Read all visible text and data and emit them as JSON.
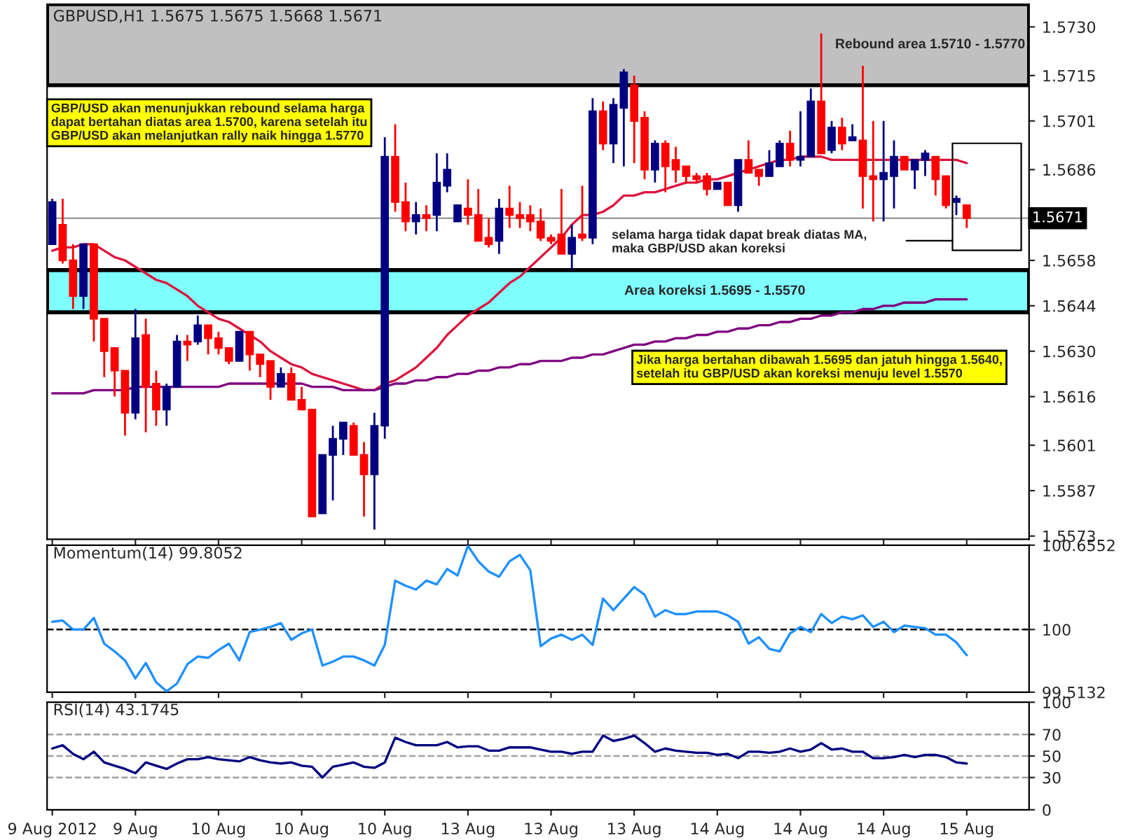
{
  "chart_data": [
    {
      "type": "candlestick",
      "title": "GBPUSD,H1 1.5675 1.5675 1.5668 1.5671",
      "categories": [
        null,
        null,
        null,
        null,
        null,
        null,
        null,
        null,
        null,
        null,
        null,
        null,
        null,
        null,
        null,
        null,
        null,
        null,
        null,
        null,
        null,
        null,
        null,
        null,
        null,
        null,
        null,
        null,
        null,
        null,
        null,
        null,
        null,
        null,
        null,
        null,
        null,
        null,
        null,
        null,
        null,
        null,
        null,
        null,
        null,
        null,
        null,
        null,
        null,
        null,
        null,
        null,
        null,
        null,
        null,
        null,
        null,
        null,
        null,
        null,
        null,
        null,
        null,
        null,
        null,
        null,
        null,
        null,
        null,
        null,
        null,
        null,
        null,
        null,
        null,
        null,
        null,
        null,
        null,
        null,
        null,
        null,
        null,
        null,
        null,
        null,
        null,
        null,
        null
      ],
      "ohlc": [
        [
          1.5663,
          1.5677,
          1.5663,
          1.5676
        ],
        [
          1.5669,
          1.5677,
          1.5657,
          1.5658
        ],
        [
          1.5658,
          1.5663,
          1.5643,
          1.5647
        ],
        [
          1.5647,
          1.5663,
          1.5643,
          1.5663
        ],
        [
          1.5663,
          1.5663,
          1.5633,
          1.564
        ],
        [
          1.564,
          1.564,
          1.5622,
          1.563
        ],
        [
          1.5631,
          1.5631,
          1.5616,
          1.5624
        ],
        [
          1.5624,
          1.5624,
          1.5604,
          1.5611
        ],
        [
          1.5611,
          1.5643,
          1.5609,
          1.5634
        ],
        [
          1.5635,
          1.564,
          1.5605,
          1.5619
        ],
        [
          1.562,
          1.5624,
          1.5607,
          1.5612
        ],
        [
          1.5612,
          1.562,
          1.5607,
          1.5619
        ],
        [
          1.5619,
          1.5635,
          1.5619,
          1.5633
        ],
        [
          1.5633,
          1.5635,
          1.5627,
          1.5632
        ],
        [
          1.5633,
          1.5641,
          1.5632,
          1.5638
        ],
        [
          1.5638,
          1.5638,
          1.5629,
          1.5634
        ],
        [
          1.5634,
          1.5636,
          1.5629,
          1.5631
        ],
        [
          1.5631,
          1.5631,
          1.5626,
          1.5627
        ],
        [
          1.5627,
          1.5636,
          1.5627,
          1.5636
        ],
        [
          1.5636,
          1.5636,
          1.5624,
          1.5629
        ],
        [
          1.5629,
          1.5629,
          1.5622,
          1.5626
        ],
        [
          1.5627,
          1.5627,
          1.5615,
          1.5619
        ],
        [
          1.5619,
          1.5625,
          1.5619,
          1.5623
        ],
        [
          1.5623,
          1.5625,
          1.5615,
          1.5615
        ],
        [
          1.5615,
          1.5619,
          1.5612,
          1.5612
        ],
        [
          1.5612,
          1.5612,
          1.5579,
          1.5579
        ],
        [
          1.558,
          1.5598,
          1.558,
          1.5598
        ],
        [
          1.5598,
          1.5607,
          1.5584,
          1.5603
        ],
        [
          1.5603,
          1.5608,
          1.5598,
          1.5608
        ],
        [
          1.5607,
          1.5608,
          1.5598,
          1.5598
        ],
        [
          1.5598,
          1.5602,
          1.5579,
          1.5592
        ],
        [
          1.5592,
          1.5611,
          1.5575,
          1.5607
        ],
        [
          1.5607,
          1.5696,
          1.5603,
          1.569
        ],
        [
          1.569,
          1.57,
          1.5673,
          1.5676
        ],
        [
          1.5676,
          1.5682,
          1.5667,
          1.567
        ],
        [
          1.567,
          1.5676,
          1.5666,
          1.5672
        ],
        [
          1.5672,
          1.5675,
          1.5667,
          1.5671
        ],
        [
          1.5672,
          1.5691,
          1.5667,
          1.5682
        ],
        [
          1.5681,
          1.5691,
          1.5679,
          1.5686
        ],
        [
          1.567,
          1.5675,
          1.567,
          1.5675
        ],
        [
          1.5674,
          1.5683,
          1.5669,
          1.5672
        ],
        [
          1.5672,
          1.568,
          1.5664,
          1.5664
        ],
        [
          1.5665,
          1.5671,
          1.5662,
          1.5663
        ],
        [
          1.5664,
          1.5677,
          1.566,
          1.5674
        ],
        [
          1.5674,
          1.5681,
          1.5668,
          1.5672
        ],
        [
          1.5672,
          1.5676,
          1.5668,
          1.5671
        ],
        [
          1.5672,
          1.5675,
          1.5667,
          1.567
        ],
        [
          1.567,
          1.5674,
          1.5664,
          1.5665
        ],
        [
          1.5665,
          1.5666,
          1.5663,
          1.5664
        ],
        [
          1.5666,
          1.568,
          1.566,
          1.566
        ],
        [
          1.566,
          1.5669,
          1.5655,
          1.5665
        ],
        [
          1.5666,
          1.5681,
          1.5664,
          1.5665
        ],
        [
          1.5665,
          1.5708,
          1.5663,
          1.5704
        ],
        [
          1.5704,
          1.5707,
          1.5692,
          1.5694
        ],
        [
          1.5694,
          1.5708,
          1.5688,
          1.5706
        ],
        [
          1.5705,
          1.5717,
          1.5687,
          1.5716
        ],
        [
          1.5712,
          1.5715,
          1.5688,
          1.5701
        ],
        [
          1.5702,
          1.5704,
          1.5683,
          1.5686
        ],
        [
          1.5686,
          1.5695,
          1.5682,
          1.5694
        ],
        [
          1.5694,
          1.5695,
          1.5679,
          1.5687
        ],
        [
          1.5689,
          1.5693,
          1.5682,
          1.5686
        ],
        [
          1.5687,
          1.5687,
          1.5682,
          1.5684
        ],
        [
          1.5684,
          1.5685,
          1.5682,
          1.5683
        ],
        [
          1.5684,
          1.5685,
          1.5678,
          1.568
        ],
        [
          1.568,
          1.5682,
          1.568,
          1.5682
        ],
        [
          1.5682,
          1.5682,
          1.5675,
          1.5675
        ],
        [
          1.5675,
          1.5689,
          1.5673,
          1.5689
        ],
        [
          1.5689,
          1.5695,
          1.5685,
          1.5685
        ],
        [
          1.5686,
          1.5686,
          1.5681,
          1.5684
        ],
        [
          1.5684,
          1.5692,
          1.5684,
          1.5688
        ],
        [
          1.5687,
          1.5695,
          1.5687,
          1.5694
        ],
        [
          1.5694,
          1.5698,
          1.5687,
          1.5689
        ],
        [
          1.5689,
          1.5704,
          1.5687,
          1.569
        ],
        [
          1.569,
          1.5711,
          1.569,
          1.5707
        ],
        [
          1.5707,
          1.5728,
          1.5691,
          1.5691
        ],
        [
          1.5692,
          1.5701,
          1.5691,
          1.5699
        ],
        [
          1.5699,
          1.5702,
          1.5692,
          1.5694
        ],
        [
          1.5695,
          1.57,
          1.5695,
          1.5696
        ],
        [
          1.5695,
          1.5718,
          1.5674,
          1.5684
        ],
        [
          1.5684,
          1.5701,
          1.567,
          1.5683
        ],
        [
          1.5683,
          1.5701,
          1.567,
          1.5685
        ],
        [
          1.5684,
          1.5695,
          1.5674,
          1.569
        ],
        [
          1.569,
          1.569,
          1.5686,
          1.5686
        ],
        [
          1.5686,
          1.5689,
          1.568,
          1.5689
        ],
        [
          1.5689,
          1.5692,
          1.5684,
          1.5691
        ],
        [
          1.569,
          1.569,
          1.5678,
          1.5683
        ],
        [
          1.5684,
          1.5684,
          1.5674,
          1.5675
        ],
        [
          1.5676,
          1.5678,
          1.5672,
          1.5677
        ],
        [
          1.5675,
          1.5675,
          1.5668,
          1.5671
        ]
      ],
      "colors": [
        "#000080",
        "#ff0000",
        "#ff0000",
        "#000080",
        "#ff0000",
        "#ff0000",
        "#ff0000",
        "#ff0000",
        "#000080",
        "#ff0000",
        "#ff0000",
        "#000080",
        "#000080",
        "#ff0000",
        "#000080",
        "#ff0000",
        "#ff0000",
        "#ff0000",
        "#000080",
        "#ff0000",
        "#ff0000",
        "#ff0000",
        "#000080",
        "#ff0000",
        "#ff0000",
        "#ff0000",
        "#000080",
        "#000080",
        "#000080",
        "#ff0000",
        "#ff0000",
        "#000080",
        "#000080",
        "#ff0000",
        "#ff0000",
        "#000080",
        "#ff0000",
        "#000080",
        "#000080",
        "#000080",
        "#ff0000",
        "#ff0000",
        "#ff0000",
        "#000080",
        "#ff0000",
        "#ff0000",
        "#ff0000",
        "#ff0000",
        "#ff0000",
        "#ff0000",
        "#000080",
        "#ff0000",
        "#000080",
        "#ff0000",
        "#000080",
        "#000080",
        "#ff0000",
        "#ff0000",
        "#000080",
        "#ff0000",
        "#ff0000",
        "#ff0000",
        "#ff0000",
        "#ff0000",
        "#000080",
        "#ff0000",
        "#000080",
        "#ff0000",
        "#ff0000",
        "#000080",
        "#000080",
        "#ff0000",
        "#000080",
        "#000080",
        "#ff0000",
        "#000080",
        "#ff0000",
        "#000080",
        "#ff0000",
        "#ff0000",
        "#000080",
        "#000080",
        "#ff0000",
        "#000080",
        "#000080",
        "#ff0000",
        "#ff0000",
        "#000080",
        "#ff0000"
      ],
      "series": [
        {
          "type": "line",
          "color": "#dc143c",
          "values": [
            1.5661,
            1.5662,
            1.5662,
            1.5663,
            1.5663,
            1.5661,
            1.5659,
            1.5658,
            1.5656,
            1.5654,
            1.5652,
            1.5651,
            1.5649,
            1.5647,
            1.5644,
            1.5642,
            1.564,
            1.5639,
            1.5637,
            1.5635,
            1.5633,
            1.563,
            1.5628,
            1.5626,
            1.5625,
            1.5623,
            1.5622,
            1.5621,
            1.562,
            1.5619,
            1.5618,
            1.5618,
            1.562,
            1.5621,
            1.5623,
            1.5625,
            1.5628,
            1.5631,
            1.5635,
            1.5638,
            1.5641,
            1.5643,
            1.5645,
            1.5648,
            1.5651,
            1.5653,
            1.5656,
            1.5659,
            1.5662,
            1.5665,
            1.5669,
            1.5672,
            1.5672,
            1.5673,
            1.5675,
            1.5678,
            1.5678,
            1.5679,
            1.5679,
            1.568,
            1.5681,
            1.5682,
            1.5682,
            1.5683,
            1.5683,
            1.5684,
            1.5685,
            1.5686,
            1.5687,
            1.5688,
            1.5689,
            1.5689,
            1.569,
            1.569,
            1.569,
            1.5689,
            1.5689,
            1.5689,
            1.5689,
            1.5689,
            1.5689,
            1.5689,
            1.5689,
            1.5689,
            1.5689,
            1.5689,
            1.5689,
            1.5689,
            1.5688
          ]
        },
        {
          "type": "line",
          "color": "#800080",
          "values": [
            1.5617,
            1.5617,
            1.5617,
            1.5617,
            1.5618,
            1.5618,
            1.5618,
            1.5618,
            1.5619,
            1.5619,
            1.5619,
            1.5619,
            1.5619,
            1.5619,
            1.5619,
            1.5619,
            1.5619,
            1.562,
            1.562,
            1.562,
            1.562,
            1.562,
            1.562,
            1.562,
            1.562,
            1.5619,
            1.5619,
            1.5619,
            1.5618,
            1.5618,
            1.5618,
            1.5618,
            1.5619,
            1.562,
            1.562,
            1.5621,
            1.5621,
            1.5622,
            1.5622,
            1.5623,
            1.5623,
            1.5624,
            1.5624,
            1.5625,
            1.5625,
            1.5626,
            1.5626,
            1.5627,
            1.5627,
            1.5627,
            1.5628,
            1.5628,
            1.5629,
            1.5629,
            1.563,
            1.5631,
            1.5632,
            1.5632,
            1.5633,
            1.5633,
            1.5634,
            1.5634,
            1.5635,
            1.5635,
            1.5636,
            1.5636,
            1.5637,
            1.5637,
            1.5638,
            1.5638,
            1.5639,
            1.5639,
            1.564,
            1.564,
            1.5641,
            1.5641,
            1.5642,
            1.5642,
            1.5643,
            1.5643,
            1.5644,
            1.5644,
            1.5645,
            1.5645,
            1.5645,
            1.5646,
            1.5646,
            1.5646,
            1.5646
          ]
        }
      ],
      "bands": [
        {
          "axis": "y",
          "from": 1.5712,
          "to": 1.5737,
          "label": "Rebound area 1.5710 - 1.5770",
          "color": "#c0c0c0"
        },
        {
          "axis": "y",
          "from": 1.5642,
          "to": 1.5655,
          "label": "Area koreksi 1.5695 - 1.5570",
          "color": "#80ffff"
        }
      ],
      "ref_lines": [
        {
          "axis": "y",
          "value": 1.5671,
          "label": "1.5671",
          "color": "#a0a0a0"
        }
      ],
      "annotations": [
        "GBP/USD akan menunjukkan rebound selama harga\ndapat bertahan diatas area 1.5700, karena setelah itu\nGBP/USD akan melanjutkan rally naik hingga 1.5770",
        "Jika harga bertahan dibawah 1.5695 dan jatuh hingga 1.5640,\nsetelah itu GBP/USD akan koreksi menuju level 1.5570",
        "selama harga tidak dapat break diatas MA,\nmaka GBP/USD akan koreksi"
      ],
      "ylim": [
        1.5572,
        1.5737
      ],
      "yticks": [
        {
          "value": 1.573,
          "label": "1.5730"
        },
        1.5715,
        1.5701,
        1.5686,
        1.5658,
        1.5644,
        {
          "value": 1.563,
          "label": "1.5630"
        },
        1.5616,
        1.5601,
        1.5587,
        1.5573
      ],
      "tick_labels": "y"
    },
    {
      "type": "line",
      "title": "Momentum(14) 99.8052",
      "categories": [
        null,
        null,
        null,
        null,
        null,
        null,
        null,
        null,
        null,
        null,
        null,
        null,
        null,
        null,
        null,
        null,
        null,
        null,
        null,
        null,
        null,
        null,
        null,
        null,
        null,
        null,
        null,
        null,
        null,
        null,
        null,
        null,
        null,
        null,
        null,
        null,
        null,
        null,
        null,
        null,
        null,
        null,
        null,
        null,
        null,
        null,
        null,
        null,
        null,
        null,
        null,
        null,
        null,
        null,
        null,
        null,
        null,
        null,
        null,
        null,
        null,
        null,
        null,
        null,
        null,
        null,
        null,
        null,
        null,
        null,
        null,
        null,
        null,
        null,
        null,
        null,
        null,
        null,
        null,
        null,
        null,
        null,
        null,
        null,
        null,
        null,
        null,
        null,
        null
      ],
      "series": [
        {
          "color": "#1e90ff",
          "values": [
            100.06,
            100.07,
            100.0,
            100.0,
            100.09,
            99.89,
            99.83,
            99.76,
            99.62,
            99.74,
            99.59,
            99.52,
            99.58,
            99.73,
            99.79,
            99.78,
            99.84,
            99.89,
            99.76,
            99.98,
            100.0,
            100.02,
            100.05,
            99.92,
            99.97,
            100.0,
            99.72,
            99.75,
            99.79,
            99.79,
            99.76,
            99.72,
            99.88,
            100.38,
            100.34,
            100.31,
            100.38,
            100.35,
            100.47,
            100.42,
            100.65,
            100.53,
            100.45,
            100.41,
            100.53,
            100.58,
            100.46,
            99.87,
            99.93,
            99.96,
            99.92,
            99.96,
            99.88,
            100.24,
            100.15,
            100.24,
            100.33,
            100.27,
            100.1,
            100.15,
            100.12,
            100.12,
            100.14,
            100.14,
            100.14,
            100.11,
            100.06,
            99.89,
            99.94,
            99.85,
            99.83,
            99.97,
            100.02,
            99.98,
            100.12,
            100.05,
            100.1,
            100.08,
            100.11,
            100.02,
            100.06,
            99.98,
            100.03,
            100.02,
            100.01,
            99.96,
            99.96,
            99.9,
            99.8
          ]
        }
      ],
      "ref_lines": [
        {
          "axis": "y",
          "value": 100,
          "color": "#000000",
          "line_style": "dashed"
        }
      ],
      "ylim": [
        99.5132,
        100.6552
      ],
      "yticks": [
        99.5132,
        100,
        100.6552
      ],
      "tick_labels": "y"
    },
    {
      "type": "line",
      "title": "RSI(14) 43.1745",
      "categories": [
        "9 Aug 2012",
        null,
        null,
        null,
        null,
        null,
        null,
        null,
        "9 Aug",
        null,
        null,
        null,
        null,
        null,
        null,
        null,
        "10 Aug",
        null,
        null,
        null,
        null,
        null,
        null,
        null,
        "10 Aug",
        null,
        null,
        null,
        null,
        null,
        null,
        null,
        "10 Aug",
        null,
        null,
        null,
        null,
        null,
        null,
        null,
        "13 Aug",
        null,
        null,
        null,
        null,
        null,
        null,
        null,
        "13 Aug",
        null,
        null,
        null,
        null,
        null,
        null,
        null,
        "13 Aug",
        null,
        null,
        null,
        null,
        null,
        null,
        null,
        "14 Aug",
        null,
        null,
        null,
        null,
        null,
        null,
        null,
        "14 Aug",
        null,
        null,
        null,
        null,
        null,
        null,
        null,
        "14 Aug",
        null,
        null,
        null,
        null,
        null,
        null,
        null,
        "15 Aug"
      ],
      "series": [
        {
          "color": "#000080",
          "values": [
            57,
            60,
            52,
            47,
            54,
            44,
            41,
            38,
            34,
            44,
            41,
            38,
            43,
            47,
            47,
            49,
            47,
            46,
            45,
            49,
            46,
            44,
            43,
            44,
            41,
            40,
            30,
            40,
            42,
            44,
            40,
            39,
            44,
            67,
            63,
            60,
            60,
            60,
            63,
            58,
            59,
            59,
            55,
            55,
            58,
            58,
            58,
            56,
            54,
            54,
            52,
            54,
            54,
            69,
            64,
            66,
            69,
            62,
            54,
            57,
            55,
            54,
            53,
            53,
            51,
            52,
            48,
            54,
            54,
            53,
            54,
            57,
            54,
            56,
            62,
            56,
            57,
            54,
            54,
            48,
            48,
            49,
            51,
            49,
            51,
            51,
            49,
            44,
            43
          ]
        }
      ],
      "ref_lines": [
        {
          "axis": "y",
          "value": 70,
          "color": "#a0a0a0",
          "line_style": "dashed"
        },
        {
          "axis": "y",
          "value": 50,
          "color": "#a0a0a0",
          "line_style": "dashed"
        },
        {
          "axis": "y",
          "value": 30,
          "color": "#a0a0a0",
          "line_style": "dashed"
        }
      ],
      "ylim": [
        0,
        100
      ],
      "yticks": [
        0,
        30,
        50,
        70,
        100
      ]
    }
  ]
}
